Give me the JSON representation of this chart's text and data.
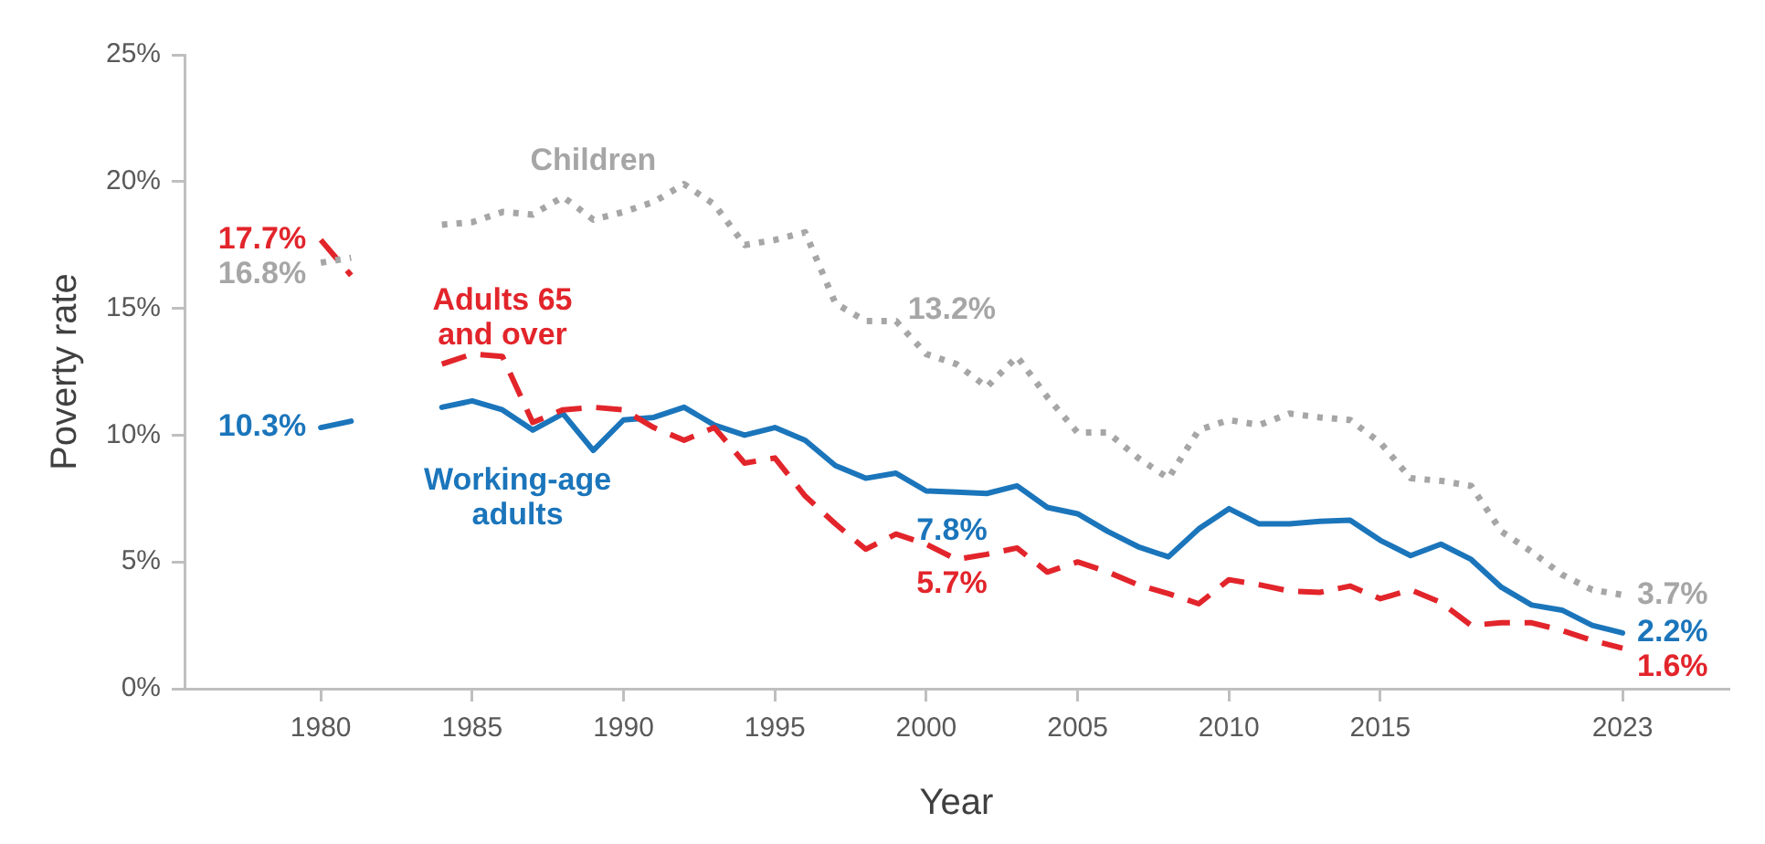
{
  "chart_data": {
    "type": "line",
    "xlabel": "Year",
    "ylabel": "Poverty rate",
    "x": [
      1980,
      1981,
      1982,
      1983,
      1984,
      1985,
      1986,
      1987,
      1988,
      1989,
      1990,
      1991,
      1992,
      1993,
      1994,
      1995,
      1996,
      1997,
      1998,
      1999,
      2000,
      2001,
      2002,
      2003,
      2004,
      2005,
      2006,
      2007,
      2008,
      2009,
      2010,
      2011,
      2012,
      2013,
      2014,
      2015,
      2016,
      2017,
      2018,
      2019,
      2020,
      2021,
      2022,
      2023
    ],
    "series": [
      {
        "name": "Children",
        "color": "#a6a6a6",
        "line_style": "dotted",
        "values": [
          16.8,
          17.0,
          null,
          null,
          18.3,
          18.4,
          18.8,
          18.7,
          19.4,
          18.5,
          18.8,
          19.2,
          19.9,
          19.1,
          17.5,
          17.7,
          18.0,
          15.2,
          14.5,
          14.5,
          13.2,
          12.8,
          11.9,
          13.1,
          11.5,
          10.1,
          10.1,
          9.1,
          8.3,
          10.2,
          10.6,
          10.4,
          10.85,
          10.7,
          10.6,
          9.7,
          8.3,
          8.2,
          8.0,
          6.2,
          5.4,
          4.5,
          3.9,
          3.7
        ]
      },
      {
        "name": "Adults 65\nand over",
        "color": "#e2252b",
        "line_style": "dashed",
        "values": [
          17.7,
          16.3,
          null,
          null,
          12.8,
          13.2,
          13.1,
          10.5,
          11.0,
          11.1,
          11.0,
          10.3,
          9.8,
          10.3,
          8.9,
          9.1,
          7.6,
          6.5,
          5.5,
          6.1,
          5.7,
          5.1,
          5.3,
          5.55,
          4.6,
          5.0,
          4.6,
          4.1,
          3.75,
          3.35,
          4.3,
          4.1,
          3.85,
          3.8,
          4.05,
          3.55,
          3.9,
          3.4,
          2.5,
          2.6,
          2.6,
          2.3,
          1.9,
          1.6
        ]
      },
      {
        "name": "Working-age\nadults",
        "color": "#1b75bb",
        "line_style": "solid",
        "values": [
          10.3,
          10.55,
          null,
          null,
          11.1,
          11.35,
          11.0,
          10.2,
          10.85,
          9.4,
          10.6,
          10.7,
          11.1,
          10.4,
          10.0,
          10.3,
          9.8,
          8.8,
          8.3,
          8.5,
          7.8,
          7.75,
          7.7,
          8.0,
          7.15,
          6.9,
          6.2,
          5.6,
          5.2,
          6.3,
          7.1,
          6.5,
          6.5,
          6.6,
          6.65,
          5.85,
          5.25,
          5.7,
          5.1,
          4.0,
          3.3,
          3.1,
          2.5,
          2.2
        ]
      }
    ],
    "xlim": [
      1975.5,
      2026.5
    ],
    "xticks": [
      1980,
      1985,
      1990,
      1995,
      2000,
      2005,
      2010,
      2015,
      2023
    ],
    "ylim": [
      0,
      25
    ],
    "yticks": [
      {
        "value": 0,
        "label": "0%"
      },
      {
        "value": 5,
        "label": "5%"
      },
      {
        "value": 10,
        "label": "10%"
      },
      {
        "value": 15,
        "label": "15%"
      },
      {
        "value": 20,
        "label": "20%"
      },
      {
        "value": 25,
        "label": "25%"
      }
    ],
    "grid": false,
    "legend": false,
    "marker": "none",
    "annotations": [
      {
        "text": "17.7%",
        "x": 1980,
        "y": 17.7
      },
      {
        "text": "16.8%",
        "x": 1980,
        "y": 16.8
      },
      {
        "text": "10.3%",
        "x": 1980,
        "y": 10.3
      },
      {
        "text": "13.2%",
        "x": 2000,
        "y": 13.2
      },
      {
        "text": "7.8%",
        "x": 2000,
        "y": 7.8
      },
      {
        "text": "5.7%",
        "x": 2000,
        "y": 5.7
      },
      {
        "text": "3.7%",
        "x": 2023,
        "y": 3.7
      },
      {
        "text": "2.2%",
        "x": 2023,
        "y": 2.2
      },
      {
        "text": "1.6%",
        "x": 2023,
        "y": 1.6
      }
    ]
  }
}
